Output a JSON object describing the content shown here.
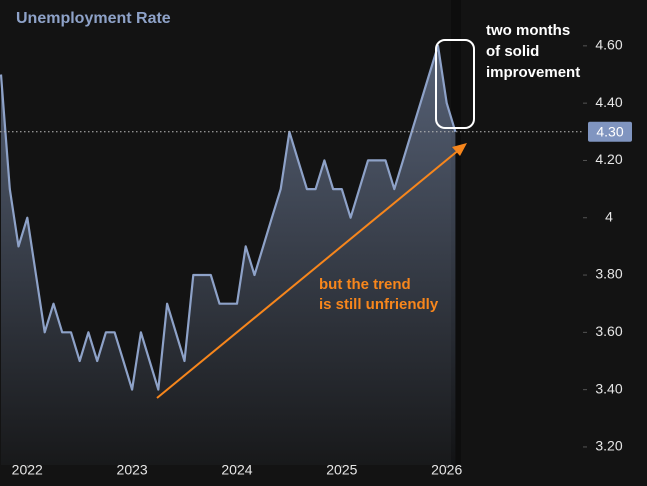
{
  "chart_data": {
    "type": "line",
    "title": "Unemployment Rate",
    "x": [
      2021.75,
      2021.8333,
      2021.9167,
      2022.0,
      2022.0833,
      2022.1667,
      2022.25,
      2022.3333,
      2022.4167,
      2022.5,
      2022.5833,
      2022.6667,
      2022.75,
      2022.8333,
      2022.9167,
      2023.0,
      2023.0833,
      2023.1667,
      2023.25,
      2023.3333,
      2023.4167,
      2023.5,
      2023.5833,
      2023.6667,
      2023.75,
      2023.8333,
      2023.9167,
      2024.0,
      2024.0833,
      2024.1667,
      2024.25,
      2024.3333,
      2024.4167,
      2024.5,
      2024.5833,
      2024.6667,
      2024.75,
      2024.8333,
      2024.9167,
      2025.0,
      2025.0833,
      2025.1667,
      2025.25,
      2025.3333,
      2025.4167,
      2025.5,
      2025.5833,
      2025.6667,
      2025.75,
      2025.8333,
      2025.9167,
      2026.0,
      2026.0833
    ],
    "series": [
      {
        "name": "Unemployment Rate",
        "color": "#8ea2c8",
        "values": [
          4.5,
          4.1,
          3.9,
          4.0,
          3.8,
          3.6,
          3.7,
          3.6,
          3.6,
          3.5,
          3.6,
          3.5,
          3.6,
          3.6,
          3.5,
          3.4,
          3.6,
          3.5,
          3.4,
          3.7,
          3.6,
          3.5,
          3.8,
          3.8,
          3.8,
          3.7,
          3.7,
          3.7,
          3.9,
          3.8,
          3.9,
          4.0,
          4.1,
          4.3,
          4.2,
          4.1,
          4.1,
          4.2,
          4.1,
          4.1,
          4.0,
          4.1,
          4.2,
          4.2,
          4.2,
          4.1,
          4.2,
          4.3,
          4.4,
          4.5,
          4.6,
          4.4,
          4.3
        ]
      }
    ],
    "xlim": [
      2021.74,
      2027.3
    ],
    "xticks": [
      2022,
      2023,
      2024,
      2025,
      2026
    ],
    "ylim": [
      3.137,
      4.76
    ],
    "yticks": [
      {
        "value": 3.2,
        "label": "3.20"
      },
      {
        "value": 3.4,
        "label": "3.40"
      },
      {
        "value": 3.6,
        "label": "3.60"
      },
      {
        "value": 3.8,
        "label": "3.80"
      },
      4,
      {
        "value": 4.2,
        "label": "4.20"
      },
      {
        "value": 4.4,
        "label": "4.40"
      },
      {
        "value": 4.6,
        "label": "4.60"
      }
    ],
    "current_marker": {
      "value": 4.3,
      "label": "4.30"
    },
    "annotations": [
      {
        "lines": [
          "two months",
          "of solid",
          "improvement"
        ],
        "color": "#ffffff"
      },
      {
        "lines": [
          "but the trend",
          "is still unfriendly"
        ],
        "color": "#f7861c"
      }
    ],
    "grid": false
  }
}
